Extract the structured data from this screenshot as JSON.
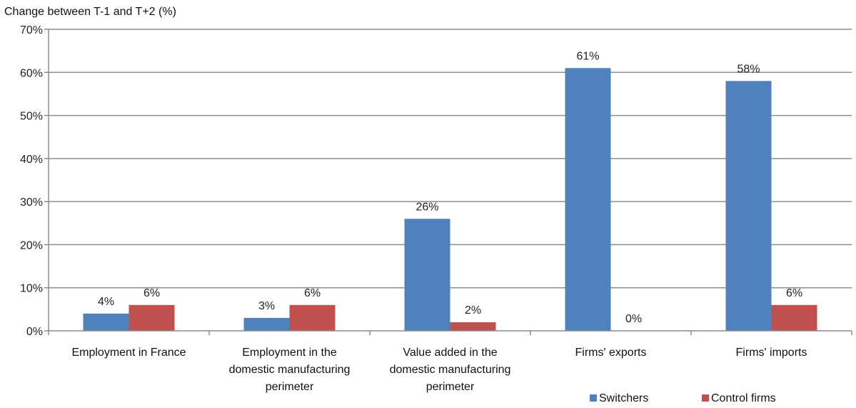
{
  "chart_data": {
    "type": "bar",
    "title": "",
    "ylabel": "Change between T-1 and T+2 (%)",
    "xlabel": "",
    "ylim": [
      0,
      70
    ],
    "yticks": [
      "0%",
      "10%",
      "20%",
      "30%",
      "40%",
      "50%",
      "60%",
      "70%"
    ],
    "grid": true,
    "legend_position": "bottom-right",
    "categories": [
      [
        "Employment in France"
      ],
      [
        "Employment in the",
        "domestic manufacturing",
        "perimeter"
      ],
      [
        "Value added in the",
        "domestic manufacturing",
        "perimeter"
      ],
      [
        "Firms' exports"
      ],
      [
        "Firms' imports"
      ]
    ],
    "series": [
      {
        "name": "Switchers",
        "color": "#4F81BD",
        "values": [
          4,
          3,
          26,
          61,
          58
        ],
        "labels": [
          "4%",
          "3%",
          "26%",
          "61%",
          "58%"
        ]
      },
      {
        "name": "Control firms",
        "color": "#C0504D",
        "values": [
          6,
          6,
          2,
          0,
          6
        ],
        "labels": [
          "6%",
          "6%",
          "2%",
          "0%",
          "6%"
        ]
      }
    ]
  }
}
